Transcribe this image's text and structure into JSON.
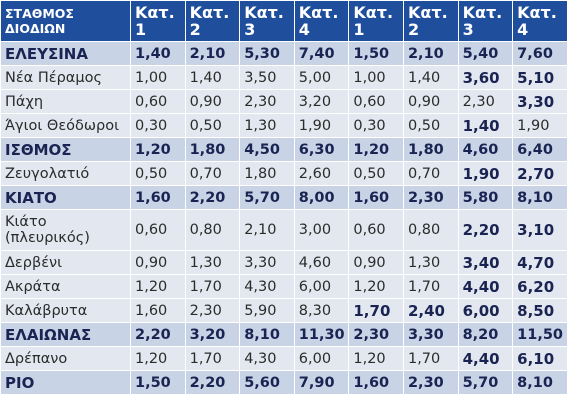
{
  "header": {
    "station_label_line1": "ΣΤΑΘΜΟΣ",
    "station_label_line2": "ΔΙΟΔΙΩΝ",
    "columns": [
      {
        "line1": "Κατ.",
        "line2": "1"
      },
      {
        "line1": "Κατ.",
        "line2": "2"
      },
      {
        "line1": "Κατ.",
        "line2": "3"
      },
      {
        "line1": "Κατ.",
        "line2": "4"
      },
      {
        "line1": "Κατ.",
        "line2": "1"
      },
      {
        "line1": "Κατ.",
        "line2": "2"
      },
      {
        "line1": "Κατ.",
        "line2": "3"
      },
      {
        "line1": "Κατ.",
        "line2": "4"
      }
    ]
  },
  "rows": [
    {
      "name": "ΕΛΕΥΣΙΝΑ",
      "name2": "",
      "values": [
        "1,40",
        "2,10",
        "5,30",
        "7,40",
        "1,50",
        "2,10",
        "5,40",
        "7,60"
      ]
    },
    {
      "name": "Νέα Πέραμος",
      "name2": "",
      "values": [
        "1,00",
        "1,40",
        "3,50",
        "5,00",
        "1,00",
        "1,40",
        "3,60",
        "5,10"
      ]
    },
    {
      "name": "Πάχη",
      "name2": "",
      "values": [
        "0,60",
        "0,90",
        "2,30",
        "3,20",
        "0,60",
        "0,90",
        "2,30",
        "3,30"
      ]
    },
    {
      "name": "Άγιοι Θεόδωροι",
      "name2": "",
      "values": [
        "0,30",
        "0,50",
        "1,30",
        "1,90",
        "0,30",
        "0,50",
        "1,40",
        "1,90"
      ]
    },
    {
      "name": "ΙΣΘΜΟΣ",
      "name2": "",
      "values": [
        "1,20",
        "1,80",
        "4,50",
        "6,30",
        "1,20",
        "1,80",
        "4,60",
        "6,40"
      ]
    },
    {
      "name": "Ζευγολατιό",
      "name2": "",
      "values": [
        "0,50",
        "0,70",
        "1,80",
        "2,60",
        "0,50",
        "0,70",
        "1,90",
        "2,70"
      ]
    },
    {
      "name": "ΚΙΑΤΟ",
      "name2": "",
      "values": [
        "1,60",
        "2,20",
        "5,70",
        "8,00",
        "1,60",
        "2,30",
        "5,80",
        "8,10"
      ]
    },
    {
      "name": "Κιάτο",
      "name2": "(πλευρικός)",
      "values": [
        "0,60",
        "0,80",
        "2,10",
        "3,00",
        "0,60",
        "0,80",
        "2,20",
        "3,10"
      ]
    },
    {
      "name": "Δερβένι",
      "name2": "",
      "values": [
        "0,90",
        "1,30",
        "3,30",
        "4,60",
        "0,90",
        "1,30",
        "3,40",
        "4,70"
      ]
    },
    {
      "name": "Ακράτα",
      "name2": "",
      "values": [
        "1,20",
        "1,70",
        "4,30",
        "6,00",
        "1,20",
        "1,70",
        "4,40",
        "6,20"
      ]
    },
    {
      "name": "Καλάβρυτα",
      "name2": "",
      "values": [
        "1,60",
        "2,30",
        "5,90",
        "8,30",
        "1,70",
        "2,40",
        "6,00",
        "8,50"
      ]
    },
    {
      "name": "ΕΛΑΙΩΝΑΣ",
      "name2": "",
      "values": [
        "2,20",
        "3,20",
        "8,10",
        "11,30",
        "2,30",
        "3,30",
        "8,20",
        "11,50"
      ]
    },
    {
      "name": "Δρέπανο",
      "name2": "",
      "values": [
        "1,20",
        "1,70",
        "4,30",
        "6,00",
        "1,20",
        "1,70",
        "4,40",
        "6,10"
      ]
    },
    {
      "name": "ΡΙΟ",
      "name2": "",
      "values": [
        "1,50",
        "2,20",
        "5,60",
        "7,90",
        "1,60",
        "2,30",
        "5,70",
        "8,10"
      ]
    }
  ]
}
